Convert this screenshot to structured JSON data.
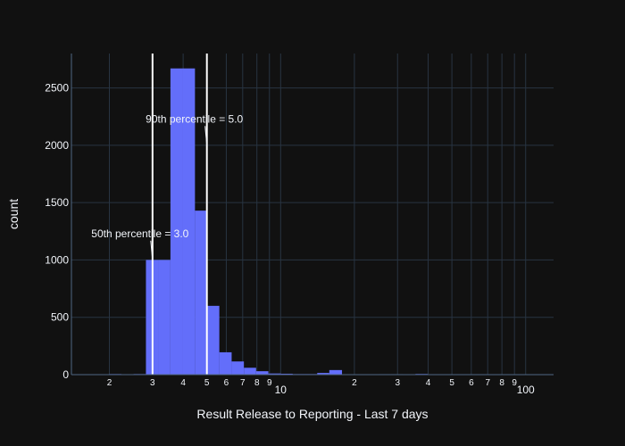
{
  "chart_data": {
    "type": "bar",
    "chart_kind": "histogram",
    "xlabel": "Result Release to Reporting - Last 7 days",
    "ylabel": "count",
    "x_scale": "log",
    "xlim": [
      1.4,
      130
    ],
    "ylim": [
      0,
      2800
    ],
    "grid": true,
    "legend": "none",
    "y_ticks": [
      0,
      500,
      1000,
      1500,
      2000,
      2500
    ],
    "x_major_ticks": [
      10,
      100
    ],
    "x_minor_ticks": [
      2,
      3,
      4,
      5,
      6,
      7,
      8,
      9,
      20,
      30,
      40,
      50,
      60,
      70,
      80,
      90
    ],
    "x_tick_labels": {
      "2": "2",
      "3": "3",
      "4": "4",
      "5": "5",
      "6": "6",
      "7": "7",
      "8": "8",
      "9": "9",
      "10": "10",
      "20": "2",
      "30": "3",
      "40": "4",
      "50": "5",
      "60": "6",
      "70": "7",
      "80": "8",
      "90": "9",
      "100": "100"
    },
    "bin_edges": [
      1.41,
      1.58,
      1.78,
      2.0,
      2.24,
      2.51,
      2.82,
      3.16,
      3.55,
      3.98,
      4.47,
      5.01,
      5.62,
      6.31,
      7.08,
      7.94,
      8.91,
      10.0,
      11.2,
      12.6,
      14.1,
      15.8,
      17.8,
      20.0,
      22.4,
      25.1,
      28.2,
      31.6,
      35.5,
      39.8,
      44.7,
      50.1,
      56.2,
      63.1,
      70.8,
      79.4,
      89.1,
      100,
      112,
      126
    ],
    "values": [
      2,
      2,
      3,
      5,
      3,
      5,
      1000,
      1000,
      2670,
      2670,
      1430,
      600,
      195,
      115,
      60,
      30,
      10,
      8,
      5,
      5,
      15,
      40,
      3,
      2,
      2,
      4,
      4,
      3,
      6,
      2,
      2,
      2,
      2,
      2,
      3,
      2,
      2,
      2,
      2
    ],
    "bar_color": "#636efa",
    "reference_lines": [
      {
        "x": 3.0,
        "label": "50th percentile = 3.0",
        "label_y": 1230,
        "arrow_y": 1000
      },
      {
        "x": 5.0,
        "label": "90th percentile = 5.0",
        "label_y": 2230,
        "arrow_y": 2000
      }
    ]
  },
  "colors": {
    "background": "#111111",
    "grid": "#283442",
    "axis_line": "#506784",
    "text": "#f2f5fa",
    "reference_line": "#ffffff"
  }
}
